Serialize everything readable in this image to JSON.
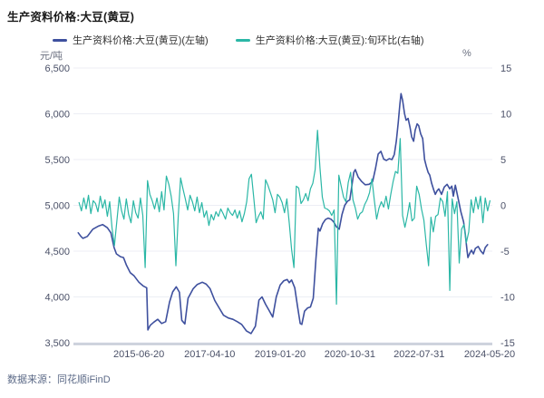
{
  "header": {
    "title": "生产资料价格:大豆(黄豆)"
  },
  "legend": {
    "items": [
      {
        "label": "生产资料价格:大豆(黄豆)(左轴)",
        "color": "#3E509E"
      },
      {
        "label": "生产资料价格:大豆(黄豆):旬环比(右轴)",
        "color": "#2BB7A6"
      }
    ]
  },
  "footer": {
    "source": "数据来源：同花顺iFinD"
  },
  "colors": {
    "price_line": "#3E509E",
    "ratio_line": "#2BB7A6",
    "grid": "#eceef4",
    "axis_line": "#c8cdd9",
    "tick_text": "#4b5168",
    "background": "#ffffff"
  },
  "chart_data": {
    "type": "line",
    "title": "生产资料价格:大豆(黄豆)",
    "grid": true,
    "legend_position": "top",
    "x_range": [
      2013.9,
      2024.45
    ],
    "x_ticks": [
      {
        "label": "2015-06-20",
        "x": 2015.47
      },
      {
        "label": "2017-04-10",
        "x": 2017.27
      },
      {
        "label": "2019-01-20",
        "x": 2019.06
      },
      {
        "label": "2020-10-31",
        "x": 2020.83
      },
      {
        "label": "2022-07-31",
        "x": 2022.59
      },
      {
        "label": "2024-05-20",
        "x": 2024.38
      }
    ],
    "left_axis": {
      "unit": "元/吨",
      "min": 3500,
      "max": 6500,
      "ticks": [
        "6,500",
        "6,000",
        "5,500",
        "5,000",
        "4,500",
        "4,000",
        "3,500"
      ]
    },
    "right_axis": {
      "unit": "%",
      "min": -15,
      "max": 15,
      "ticks": [
        "15",
        "10",
        "5",
        "0",
        "-5",
        "-10",
        "-15"
      ]
    },
    "series": [
      {
        "name": "生产资料价格:大豆(黄豆)(左轴)",
        "axis": "left",
        "color": "#3E509E",
        "width": 1.6,
        "points": [
          [
            2013.93,
            4700
          ],
          [
            2014.0,
            4660
          ],
          [
            2014.05,
            4640
          ],
          [
            2014.16,
            4660
          ],
          [
            2014.3,
            4740
          ],
          [
            2014.45,
            4775
          ],
          [
            2014.55,
            4790
          ],
          [
            2014.67,
            4755
          ],
          [
            2014.76,
            4700
          ],
          [
            2014.84,
            4540
          ],
          [
            2014.9,
            4470
          ],
          [
            2015.0,
            4440
          ],
          [
            2015.08,
            4430
          ],
          [
            2015.15,
            4350
          ],
          [
            2015.25,
            4265
          ],
          [
            2015.35,
            4230
          ],
          [
            2015.47,
            4160
          ],
          [
            2015.58,
            4120
          ],
          [
            2015.67,
            4100
          ],
          [
            2015.7,
            3640
          ],
          [
            2015.76,
            3690
          ],
          [
            2015.85,
            3725
          ],
          [
            2015.95,
            3755
          ],
          [
            2016.05,
            3710
          ],
          [
            2016.15,
            3730
          ],
          [
            2016.25,
            3945
          ],
          [
            2016.33,
            4055
          ],
          [
            2016.42,
            4110
          ],
          [
            2016.5,
            4050
          ],
          [
            2016.56,
            3745
          ],
          [
            2016.64,
            3705
          ],
          [
            2016.72,
            3985
          ],
          [
            2016.85,
            4090
          ],
          [
            2016.95,
            4135
          ],
          [
            2017.08,
            4160
          ],
          [
            2017.18,
            4140
          ],
          [
            2017.28,
            4090
          ],
          [
            2017.4,
            3960
          ],
          [
            2017.51,
            3880
          ],
          [
            2017.62,
            3800
          ],
          [
            2017.74,
            3770
          ],
          [
            2017.86,
            3755
          ],
          [
            2017.97,
            3730
          ],
          [
            2018.08,
            3700
          ],
          [
            2018.2,
            3630
          ],
          [
            2018.32,
            3600
          ],
          [
            2018.43,
            3680
          ],
          [
            2018.52,
            3965
          ],
          [
            2018.6,
            4000
          ],
          [
            2018.69,
            3920
          ],
          [
            2018.78,
            3850
          ],
          [
            2018.87,
            3780
          ],
          [
            2018.96,
            4000
          ],
          [
            2019.06,
            4130
          ],
          [
            2019.15,
            4175
          ],
          [
            2019.24,
            4190
          ],
          [
            2019.29,
            4155
          ],
          [
            2019.35,
            4185
          ],
          [
            2019.43,
            4100
          ],
          [
            2019.5,
            3900
          ],
          [
            2019.57,
            3710
          ],
          [
            2019.61,
            3700
          ],
          [
            2019.68,
            3845
          ],
          [
            2019.76,
            3880
          ],
          [
            2019.83,
            3890
          ],
          [
            2019.9,
            3985
          ],
          [
            2019.97,
            4420
          ],
          [
            2020.03,
            4750
          ],
          [
            2020.07,
            4720
          ],
          [
            2020.14,
            4800
          ],
          [
            2020.21,
            4845
          ],
          [
            2020.28,
            4860
          ],
          [
            2020.35,
            4850
          ],
          [
            2020.42,
            4820
          ],
          [
            2020.49,
            4765
          ],
          [
            2020.56,
            4740
          ],
          [
            2020.63,
            4900
          ],
          [
            2020.7,
            5000
          ],
          [
            2020.77,
            5045
          ],
          [
            2020.83,
            5060
          ],
          [
            2020.87,
            5180
          ],
          [
            2020.93,
            5360
          ],
          [
            2020.97,
            5390
          ],
          [
            2021.04,
            5310
          ],
          [
            2021.13,
            5260
          ],
          [
            2021.22,
            5225
          ],
          [
            2021.32,
            5230
          ],
          [
            2021.41,
            5260
          ],
          [
            2021.48,
            5400
          ],
          [
            2021.55,
            5560
          ],
          [
            2021.62,
            5590
          ],
          [
            2021.69,
            5505
          ],
          [
            2021.76,
            5490
          ],
          [
            2021.83,
            5510
          ],
          [
            2021.9,
            5500
          ],
          [
            2021.96,
            5555
          ],
          [
            2022.01,
            5700
          ],
          [
            2022.06,
            5900
          ],
          [
            2022.1,
            6100
          ],
          [
            2022.13,
            6220
          ],
          [
            2022.17,
            6150
          ],
          [
            2022.22,
            6000
          ],
          [
            2022.26,
            5930
          ],
          [
            2022.31,
            5950
          ],
          [
            2022.36,
            5850
          ],
          [
            2022.4,
            5750
          ],
          [
            2022.45,
            5700
          ],
          [
            2022.49,
            5820
          ],
          [
            2022.54,
            5890
          ],
          [
            2022.58,
            5870
          ],
          [
            2022.63,
            5780
          ],
          [
            2022.68,
            5730
          ],
          [
            2022.73,
            5500
          ],
          [
            2022.77,
            5430
          ],
          [
            2022.82,
            5360
          ],
          [
            2022.86,
            5330
          ],
          [
            2022.91,
            5240
          ],
          [
            2022.96,
            5170
          ],
          [
            2023.0,
            5120
          ],
          [
            2023.05,
            5160
          ],
          [
            2023.09,
            5180
          ],
          [
            2023.16,
            5120
          ],
          [
            2023.23,
            5200
          ],
          [
            2023.3,
            5230
          ],
          [
            2023.37,
            5180
          ],
          [
            2023.42,
            5210
          ],
          [
            2023.46,
            5100
          ],
          [
            2023.51,
            5220
          ],
          [
            2023.58,
            5080
          ],
          [
            2023.65,
            4930
          ],
          [
            2023.72,
            4820
          ],
          [
            2023.76,
            4700
          ],
          [
            2023.81,
            4500
          ],
          [
            2023.83,
            4430
          ],
          [
            2023.88,
            4480
          ],
          [
            2023.92,
            4510
          ],
          [
            2023.97,
            4470
          ],
          [
            2024.02,
            4530
          ],
          [
            2024.09,
            4550
          ],
          [
            2024.16,
            4500
          ],
          [
            2024.22,
            4470
          ],
          [
            2024.27,
            4540
          ],
          [
            2024.33,
            4570
          ]
        ]
      },
      {
        "name": "生产资料价格:大豆(黄豆):旬环比(右轴)",
        "axis": "right",
        "color": "#2BB7A6",
        "width": 1.2,
        "x_start": 2013.95,
        "x_step": 0.06,
        "values": [
          0.3,
          -0.6,
          0.8,
          -0.4,
          1.1,
          -0.9,
          0.5,
          0.2,
          -0.7,
          1.0,
          -0.3,
          0.6,
          -1.2,
          0.4,
          -2.5,
          -4.4,
          -1.8,
          0.9,
          -0.6,
          -1.5,
          0.7,
          -1.0,
          -1.9,
          0.5,
          -0.8,
          -1.4,
          0.8,
          -1.1,
          -6.8,
          2.7,
          1.2,
          0.5,
          -0.4,
          0.8,
          -0.7,
          1.5,
          -0.5,
          3.2,
          2.3,
          1.0,
          -0.9,
          -6.6,
          -1.2,
          3.0,
          1.8,
          0.7,
          -0.5,
          1.1,
          0.4,
          -0.6,
          0.9,
          -0.8,
          0.3,
          -1.3,
          -0.6,
          -2.2,
          -1.0,
          -1.6,
          -0.7,
          -1.2,
          -0.4,
          -0.9,
          -1.5,
          -0.3,
          -0.8,
          -1.1,
          -0.5,
          -1.4,
          -0.6,
          -1.8,
          -0.9,
          0.4,
          2.9,
          3.4,
          0.8,
          -1.9,
          -1.2,
          -0.7,
          -1.5,
          2.8,
          2.2,
          1.4,
          0.6,
          -0.8,
          1.2,
          0.9,
          0.3,
          -0.8,
          0.7,
          -1.9,
          -4.8,
          -6.8,
          2.1,
          1.9,
          0.2,
          0.6,
          1.3,
          0.5,
          1.8,
          2.4,
          3.9,
          8.2,
          4.1,
          0.9,
          -0.3,
          -0.4,
          -0.6,
          -1.1,
          -0.5,
          -10.8,
          3.3,
          2.1,
          0.9,
          0.4,
          2.5,
          3.6,
          0.6,
          -0.3,
          -1.5,
          -0.9,
          -0.7,
          0.1,
          0.6,
          1.4,
          2.9,
          0.6,
          -1.5,
          -0.3,
          0.4,
          -0.2,
          1.0,
          -0.4,
          1.2,
          2.6,
          3.7,
          3.5,
          7.3,
          -1.1,
          -2.4,
          -1.2,
          0.3,
          -1.7,
          -1.4,
          2.1,
          1.2,
          -0.4,
          -1.6,
          -4.2,
          -6.6,
          -1.3,
          -2.9,
          -1.2,
          -1.0,
          0.8,
          0.4,
          -1.2,
          1.5,
          -9.3,
          0.7,
          -0.9,
          0.4,
          -6.3,
          -2.6,
          -2.1,
          -4.1,
          -2.9,
          0.6,
          -0.8,
          0.9,
          -0.4,
          1.0,
          -1.9,
          0.8,
          -0.6,
          0.5
        ]
      }
    ]
  }
}
